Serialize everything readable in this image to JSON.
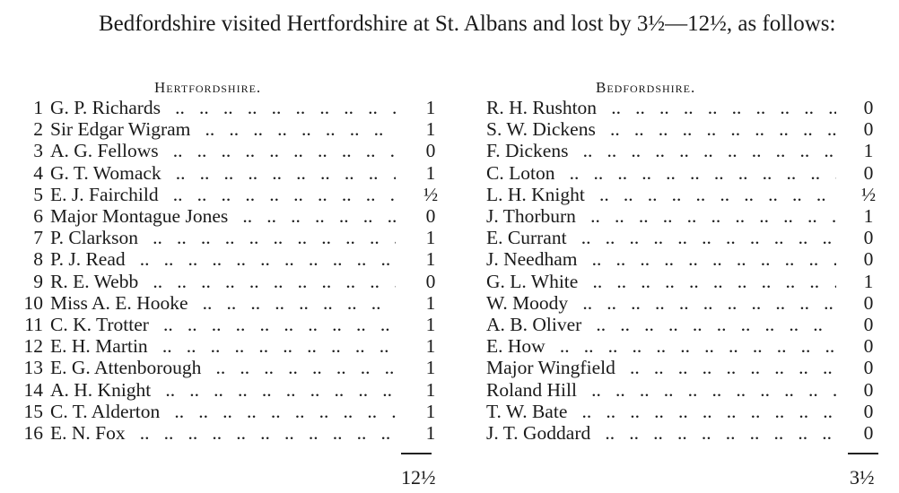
{
  "intro": "Bedfordshire visited Hertfordshire at St. Albans and lost by 3½—12½, as follows:",
  "teams": {
    "left": "Hertfordshire.",
    "right": "Bedfordshire."
  },
  "rows": [
    {
      "n": "1",
      "home": "G. P. Richards",
      "hs": "1",
      "away": "R. H. Rushton",
      "as": "0"
    },
    {
      "n": "2",
      "home": "Sir Edgar Wigram",
      "hs": "1",
      "away": "S. W. Dickens",
      "as": "0"
    },
    {
      "n": "3",
      "home": "A. G. Fellows",
      "hs": "0",
      "away": "F. Dickens",
      "as": "1"
    },
    {
      "n": "4",
      "home": "G. T. Womack",
      "hs": "1",
      "away": "C. Loton",
      "as": "0"
    },
    {
      "n": "5",
      "home": "E. J. Fairchild",
      "hs": "½",
      "away": "L. H. Knight",
      "as": "½"
    },
    {
      "n": "6",
      "home": "Major Montague Jones",
      "hs": "0",
      "away": "J. Thorburn",
      "as": "1"
    },
    {
      "n": "7",
      "home": "P. Clarkson",
      "hs": "1",
      "away": "E. Currant",
      "as": "0"
    },
    {
      "n": "8",
      "home": "P. J. Read",
      "hs": "1",
      "away": "J. Needham",
      "as": "0"
    },
    {
      "n": "9",
      "home": "R. E. Webb",
      "hs": "0",
      "away": "G. L. White",
      "as": "1"
    },
    {
      "n": "10",
      "home": "Miss A. E. Hooke",
      "hs": "1",
      "away": "W. Moody",
      "as": "0"
    },
    {
      "n": "11",
      "home": "C. K. Trotter",
      "hs": "1",
      "away": "A. B. Oliver",
      "as": "0"
    },
    {
      "n": "12",
      "home": "E. H. Martin",
      "hs": "1",
      "away": "E. How",
      "as": "0"
    },
    {
      "n": "13",
      "home": "E. G. Attenborough",
      "hs": "1",
      "away": "Major Wingfield",
      "as": "0"
    },
    {
      "n": "14",
      "home": "A. H. Knight",
      "hs": "1",
      "away": "Roland Hill",
      "as": "0"
    },
    {
      "n": "15",
      "home": "C. T. Alderton",
      "hs": "1",
      "away": "T. W. Bate",
      "as": "0"
    },
    {
      "n": "16",
      "home": "E. N. Fox",
      "hs": "1",
      "away": "J. T. Goddard",
      "as": "0"
    }
  ],
  "totals": {
    "left": "12½",
    "right": "3½"
  }
}
